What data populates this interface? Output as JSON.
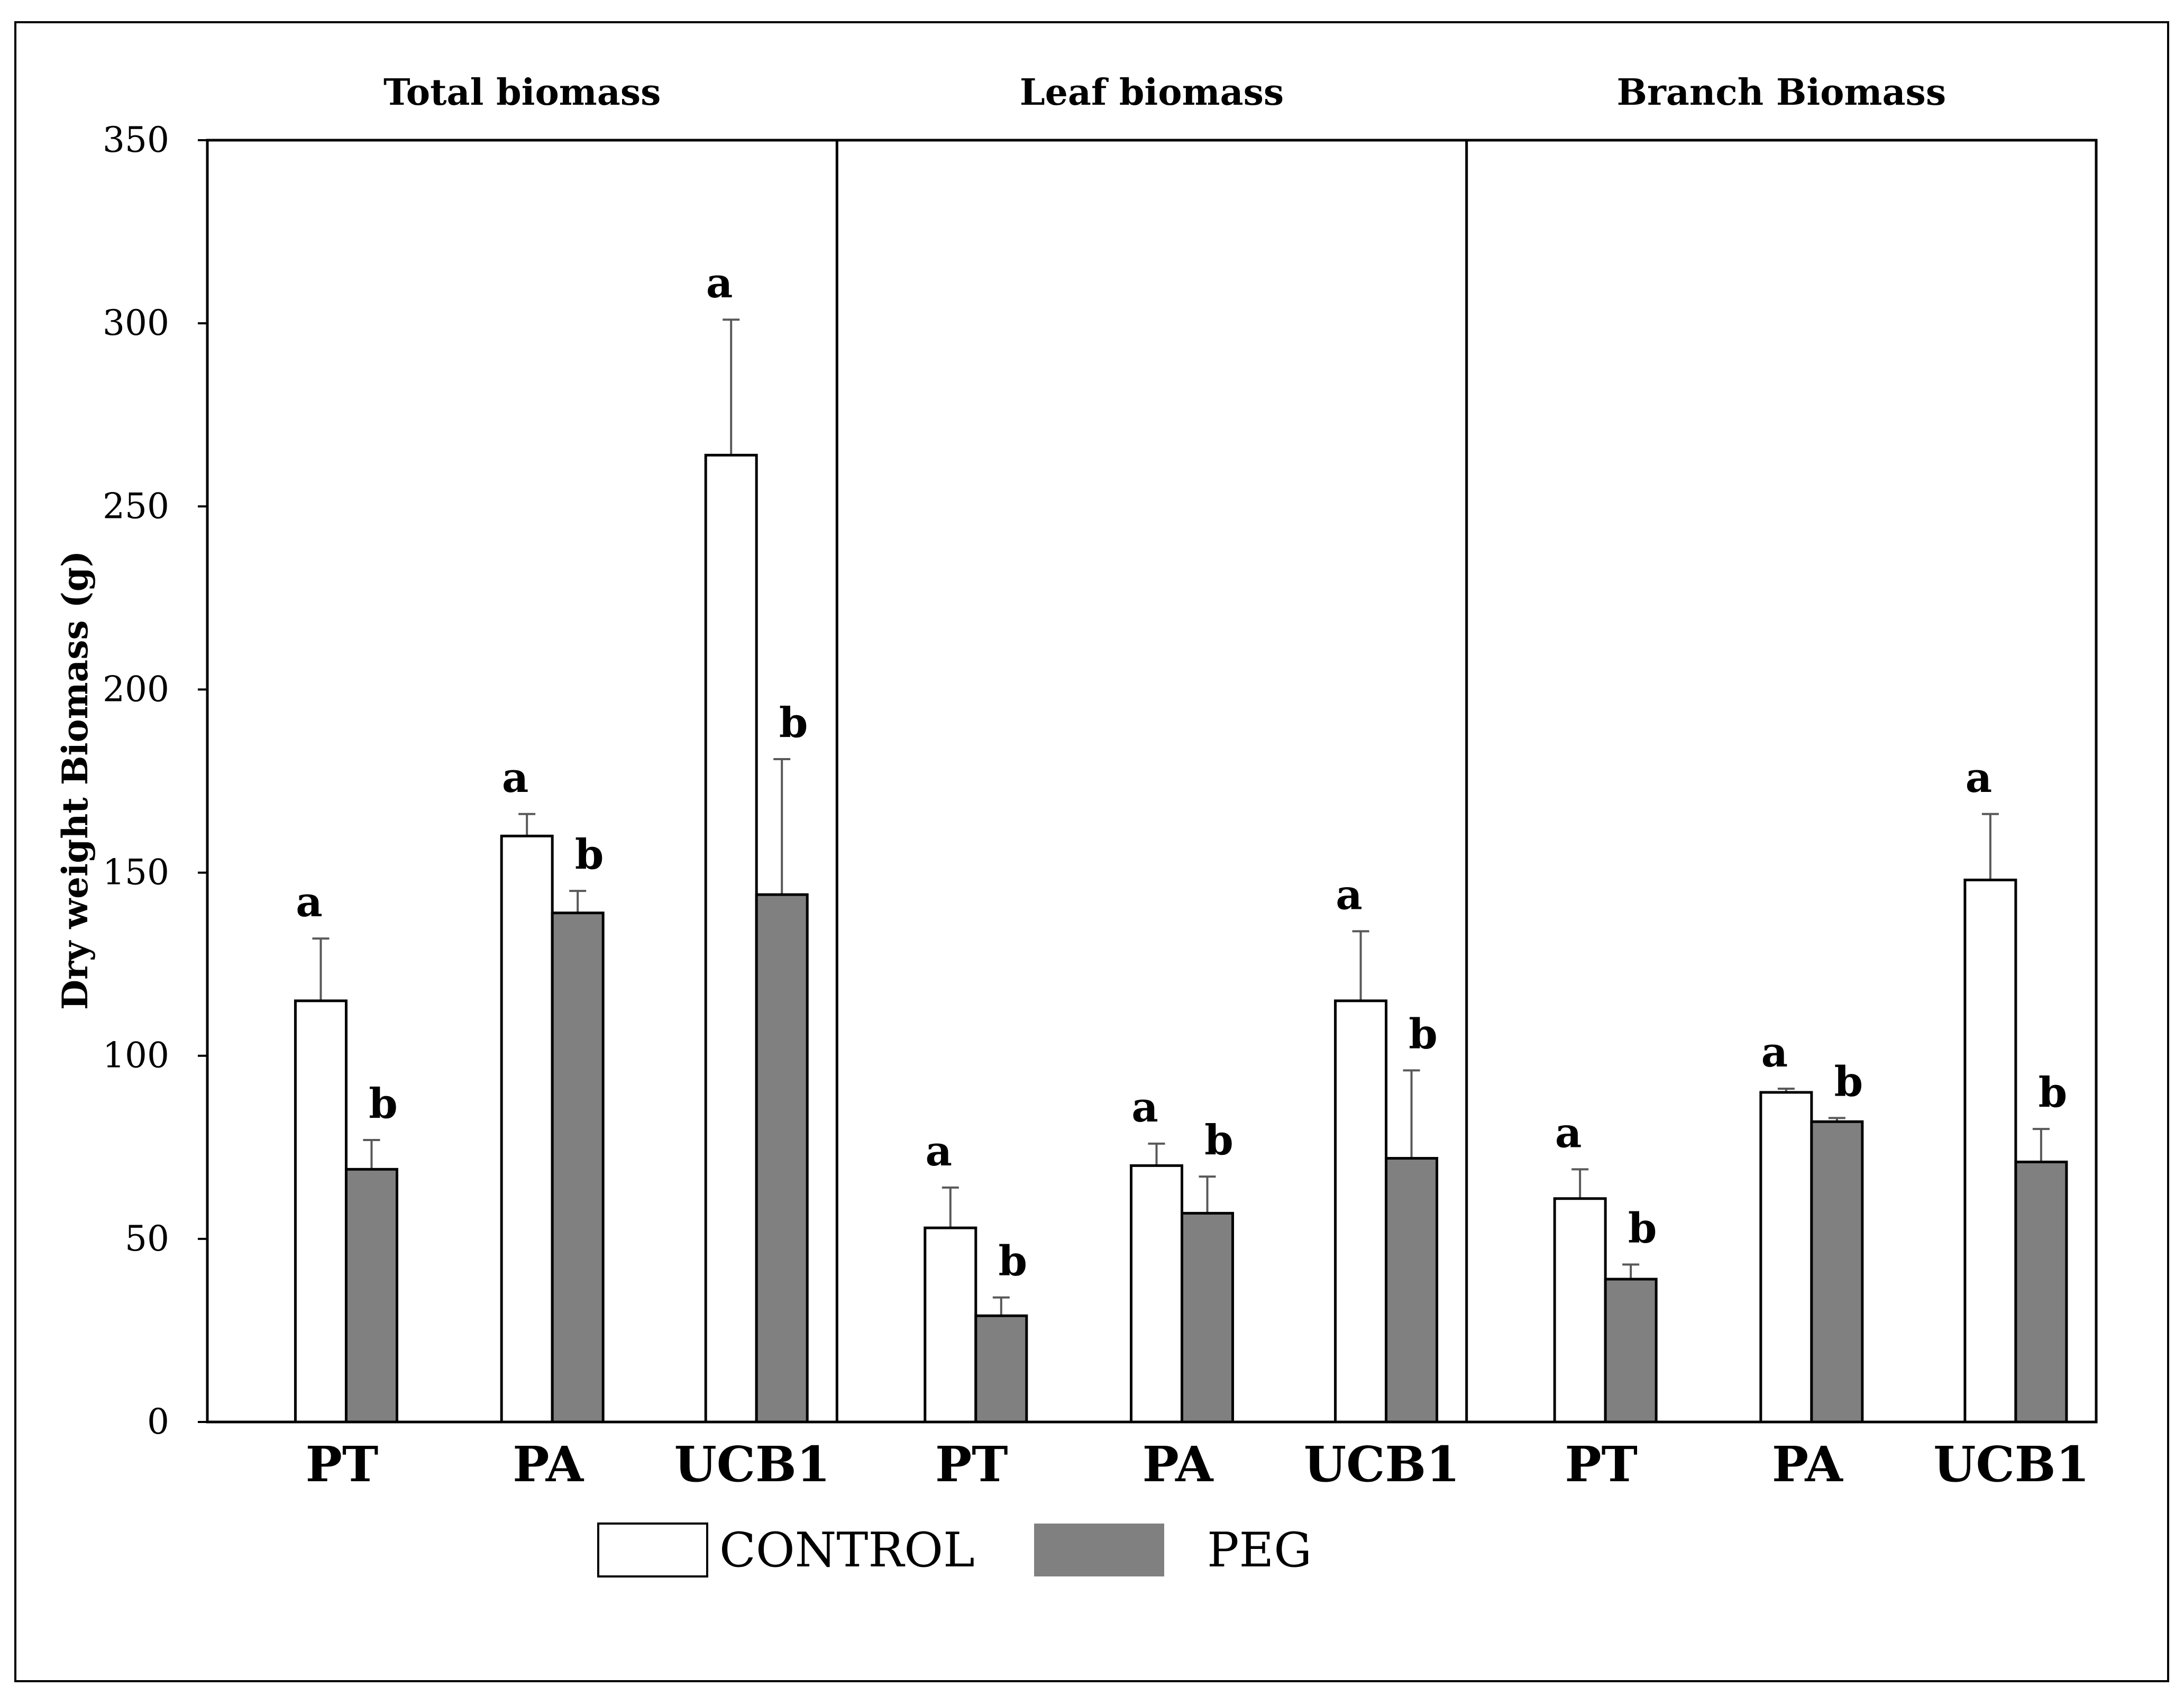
{
  "chart_data": {
    "type": "bar",
    "ylabel": "Dry weight Biomass (g)",
    "ylim": [
      0,
      350
    ],
    "yticks": [
      0,
      50,
      100,
      150,
      200,
      250,
      300,
      350
    ],
    "grid": false,
    "legend_position": "bottom",
    "colors": {
      "CONTROL": "#ffffff",
      "PEG": "#808080",
      "error_bar": "#595959",
      "axis": "#000000"
    },
    "series": [
      {
        "name": "CONTROL"
      },
      {
        "name": "PEG"
      }
    ],
    "panels": [
      {
        "title": "Total biomass",
        "categories": [
          "PT",
          "PA",
          "UCB1"
        ],
        "series": [
          {
            "name": "CONTROL",
            "values": [
              115,
              160,
              264
            ],
            "errors": [
              17,
              6,
              37
            ],
            "letters": [
              "a",
              "a",
              "a"
            ]
          },
          {
            "name": "PEG",
            "values": [
              69,
              139,
              144
            ],
            "errors": [
              8,
              6,
              37
            ],
            "letters": [
              "b",
              "b",
              "b"
            ]
          }
        ]
      },
      {
        "title": "Leaf biomass",
        "categories": [
          "PT",
          "PA",
          "UCB1"
        ],
        "series": [
          {
            "name": "CONTROL",
            "values": [
              53,
              70,
              115
            ],
            "errors": [
              11,
              6,
              19
            ],
            "letters": [
              "a",
              "a",
              "a"
            ]
          },
          {
            "name": "PEG",
            "values": [
              29,
              57,
              72
            ],
            "errors": [
              5,
              10,
              24
            ],
            "letters": [
              "b",
              "b",
              "b"
            ]
          }
        ]
      },
      {
        "title": "Branch Biomass",
        "categories": [
          "PT",
          "PA",
          "UCB1"
        ],
        "series": [
          {
            "name": "CONTROL",
            "values": [
              61,
              90,
              148
            ],
            "errors": [
              8,
              1,
              18
            ],
            "letters": [
              "a",
              "a",
              "a"
            ]
          },
          {
            "name": "PEG",
            "values": [
              39,
              82,
              71
            ],
            "errors": [
              4,
              1,
              9
            ],
            "letters": [
              "b",
              "b",
              "b"
            ]
          }
        ]
      }
    ]
  }
}
